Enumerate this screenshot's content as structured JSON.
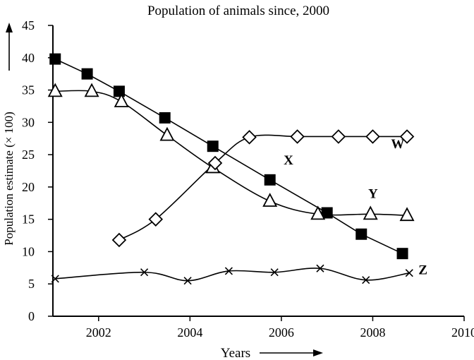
{
  "chart_data": {
    "type": "line",
    "title": "Population of animals since, 2000",
    "xlabel": "Years",
    "ylabel": "Population estimate (× 100)",
    "xlim": [
      2001,
      2010
    ],
    "ylim": [
      0,
      45
    ],
    "x_ticks": [
      "2002",
      "2004",
      "2006",
      "2008",
      "2010"
    ],
    "y_ticks": [
      "0",
      "5",
      "10",
      "15",
      "20",
      "25",
      "30",
      "35",
      "40",
      "45"
    ],
    "grid": false,
    "legend": "inline labels at line ends",
    "series": [
      {
        "name": "X",
        "marker": "filled-square",
        "x": [
          2001.05,
          2001.75,
          2002.45,
          2003.45,
          2004.5,
          2005.75,
          2007.0,
          2007.75,
          2008.65
        ],
        "y": [
          39.8,
          37.5,
          34.8,
          30.7,
          26.3,
          21.1,
          16.0,
          12.7,
          9.7
        ]
      },
      {
        "name": "Y",
        "marker": "open-triangle",
        "x": [
          2001.05,
          2001.85,
          2002.5,
          2003.5,
          2004.5,
          2005.75,
          2006.8,
          2007.95,
          2008.75
        ],
        "y": [
          34.8,
          34.8,
          33.2,
          28.0,
          23.0,
          17.8,
          15.8,
          15.8,
          15.6
        ]
      },
      {
        "name": "W",
        "marker": "open-diamond",
        "x": [
          2002.45,
          2003.25,
          2004.55,
          2005.3,
          2006.35,
          2007.25,
          2008.0,
          2008.75
        ],
        "y": [
          11.8,
          15.0,
          23.7,
          27.7,
          27.8,
          27.8,
          27.8,
          27.8
        ]
      },
      {
        "name": "Z",
        "marker": "x",
        "x": [
          2001.05,
          2003.0,
          2003.95,
          2004.85,
          2005.85,
          2006.85,
          2007.85,
          2008.8
        ],
        "y": [
          5.8,
          6.8,
          5.5,
          7.0,
          6.8,
          7.4,
          5.6,
          6.7
        ]
      }
    ]
  }
}
